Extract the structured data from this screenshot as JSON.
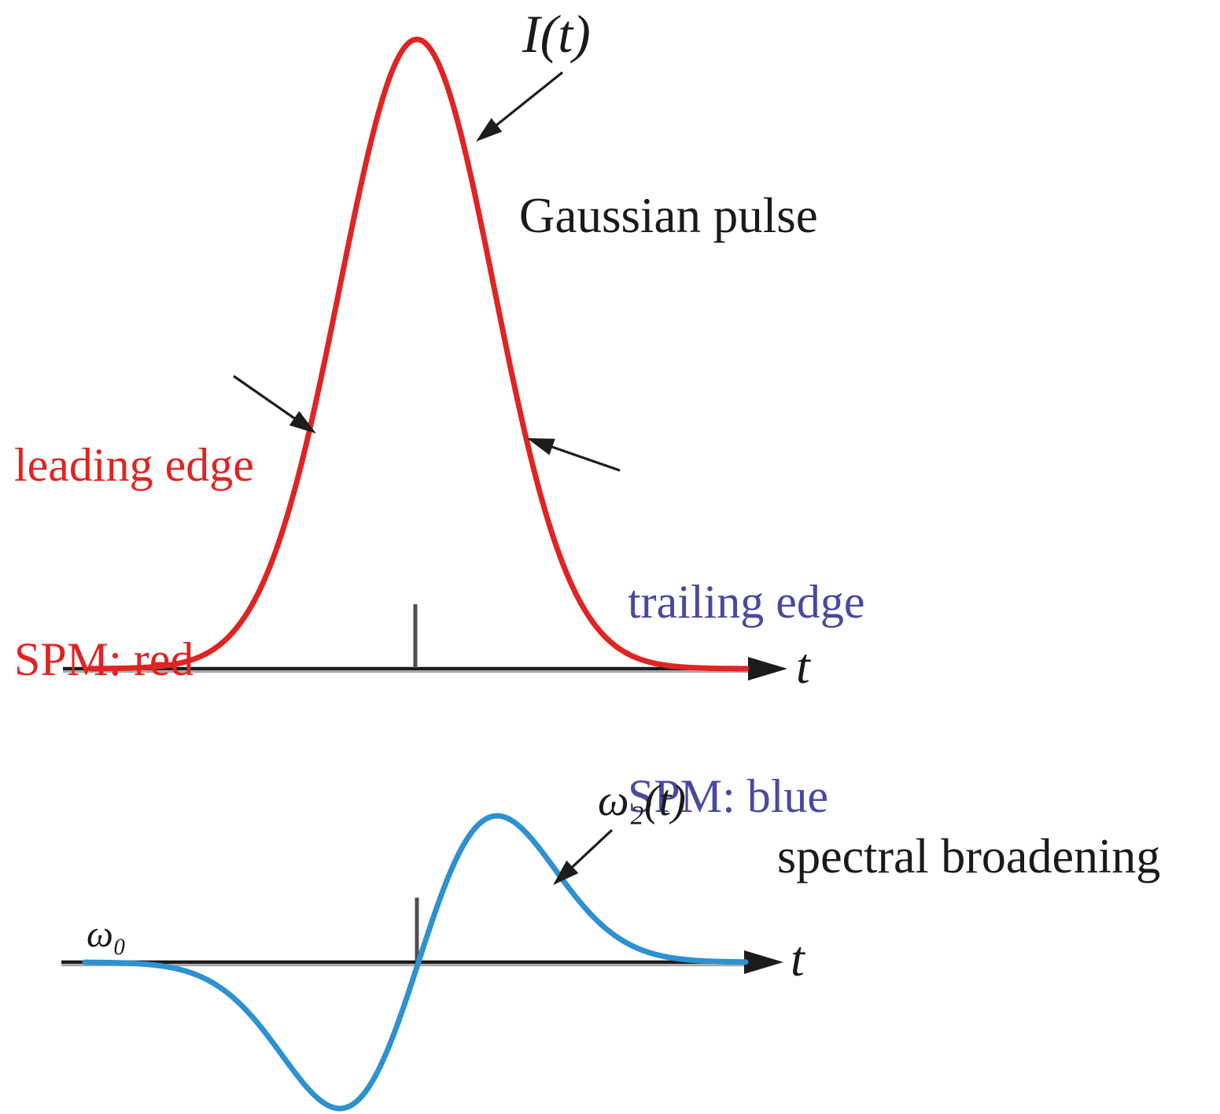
{
  "figure": {
    "background": "#ffffff",
    "top_plot": {
      "curve_label": "I(t)",
      "title": "Gaussian pulse",
      "leading_label_line1": "leading edge",
      "leading_label_line2": "SPM: red",
      "trailing_label_line1": "trailing edge",
      "trailing_label_line2": "SPM: blue",
      "axis_label": "t"
    },
    "bottom_plot": {
      "curve_label": "ω₂(t)",
      "baseline_label": "ω₀",
      "title": "spectral broadening",
      "axis_label": "t"
    }
  },
  "colors": {
    "pulse_red": "#e02422",
    "frequency_blue": "#2e91d0",
    "leading_text_red": "#e02422",
    "trailing_text_blue": "#4949a2",
    "axis_black": "#1c1c1c",
    "axis_shadow_gray": "#a8a8a8",
    "tick_gray": "#4f4f4f",
    "text_black": "#1a1a1a"
  },
  "chart_data": [
    {
      "type": "line",
      "name": "I(t)",
      "title": "Gaussian pulse",
      "curve": "gaussian",
      "xlabel": "t",
      "peak_t_sigma": 0,
      "peak_value_normalized": 1,
      "x_range_sigma": [
        -4.2,
        4.3
      ],
      "center_tick_at_sigma": 0,
      "color": "#e02422",
      "annotations": [
        "I(t)",
        "Gaussian pulse",
        "leading edge SPM: red",
        "trailing edge SPM: blue"
      ]
    },
    {
      "type": "line",
      "name": "ω₂(t)",
      "title": "spectral broadening",
      "curve": "negative-gaussian-derivative",
      "xlabel": "t",
      "baseline": "ω₀",
      "zero_crossing_t_sigma": 0,
      "minimum_at_sigma": -1,
      "maximum_at_sigma": 1,
      "extremum_value_normalized": 1,
      "x_range_sigma": [
        -4.2,
        4.2
      ],
      "color": "#2e91d0",
      "annotations": [
        "ω₂(t)",
        "spectral broadening"
      ]
    }
  ]
}
